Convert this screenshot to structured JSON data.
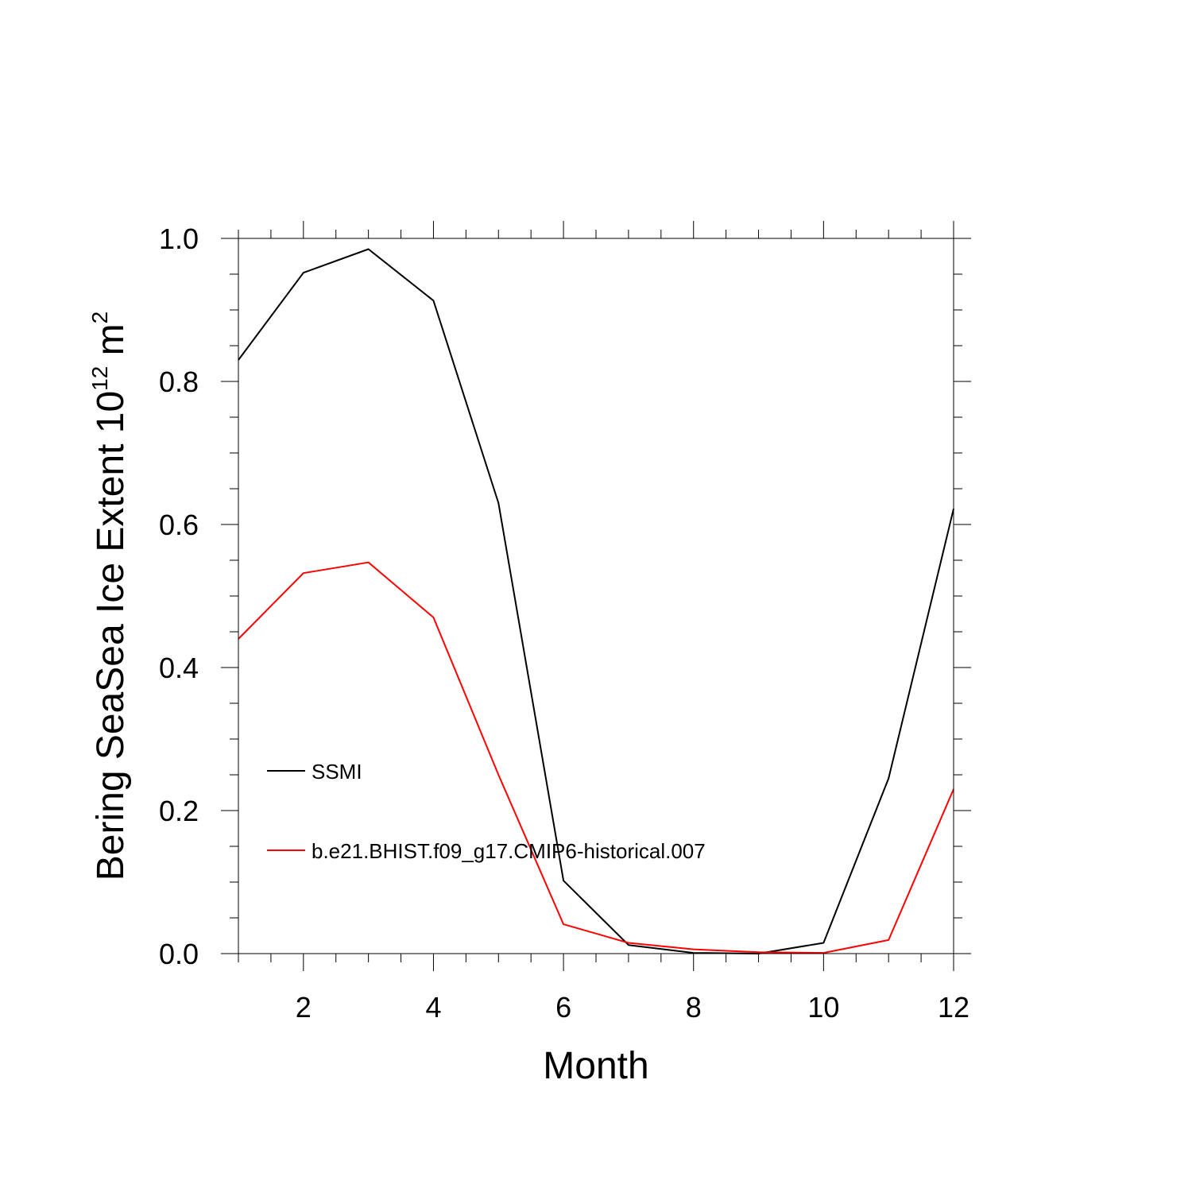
{
  "chart_data": {
    "type": "line",
    "xlabel": "Month",
    "ylabel_main": "Bering SeaSea Ice Extent 10",
    "ylabel_exponent": "12",
    "ylabel_unit": " m",
    "ylabel_unit_exponent": "2",
    "xlim": [
      1,
      12
    ],
    "ylim": [
      0,
      1
    ],
    "x_ticks": [
      2,
      4,
      6,
      8,
      10,
      12
    ],
    "y_ticks": [
      "0.0",
      "0.2",
      "0.4",
      "0.6",
      "0.8",
      "1.0"
    ],
    "grid": false,
    "legend_position": "lower-left",
    "x": [
      1,
      2,
      3,
      4,
      5,
      6,
      7,
      8,
      9,
      10,
      11,
      12
    ],
    "series": [
      {
        "name": "SSMI",
        "color": "#000000",
        "values": [
          0.83,
          0.952,
          0.985,
          0.913,
          0.63,
          0.102,
          0.012,
          0.001,
          0.0,
          0.015,
          0.245,
          0.622
        ]
      },
      {
        "name": "b.e21.BHIST.f09_g17.CMIP6-historical.007",
        "color": "#ff0000",
        "values": [
          0.44,
          0.532,
          0.547,
          0.47,
          0.25,
          0.041,
          0.015,
          0.006,
          0.002,
          0.001,
          0.019,
          0.23
        ]
      }
    ]
  }
}
